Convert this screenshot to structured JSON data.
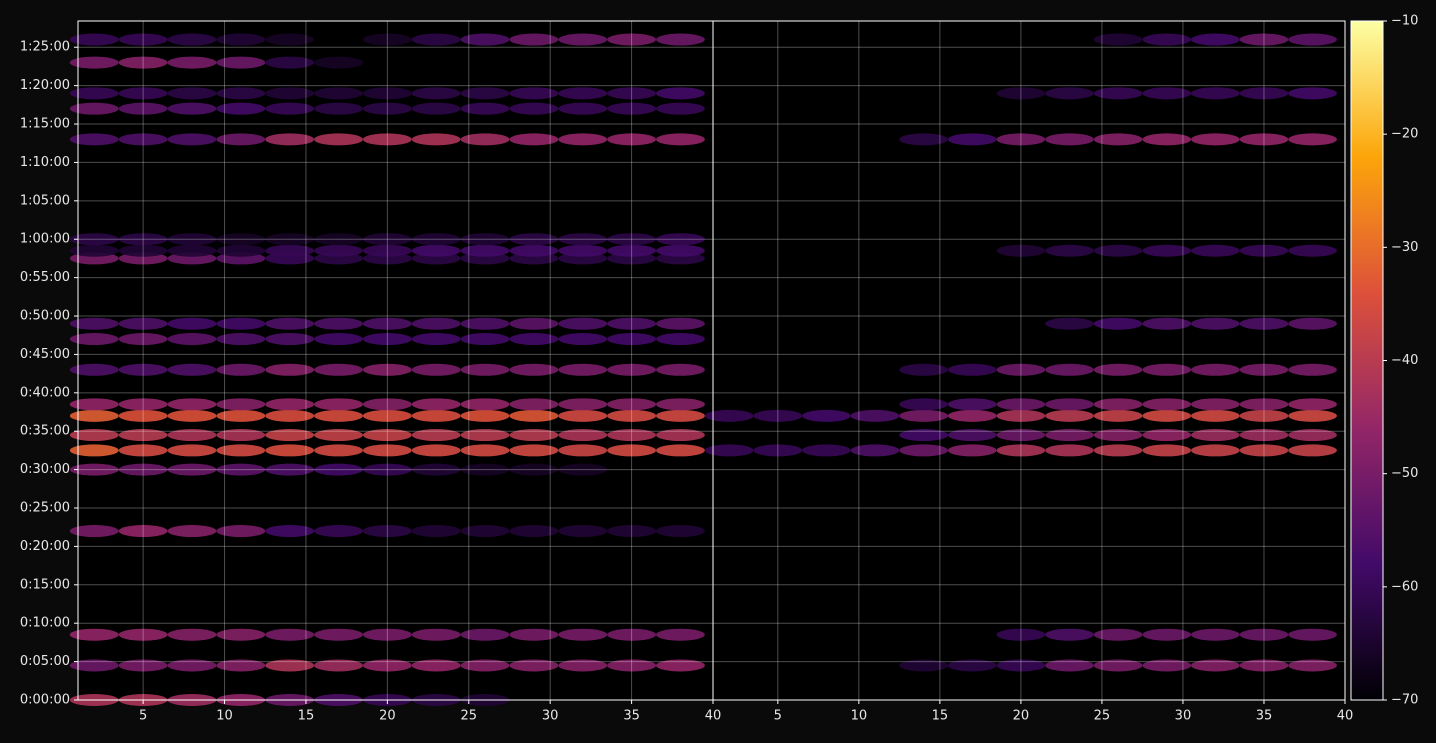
{
  "chart_data": [
    {
      "type": "heatmap",
      "grid": true,
      "x": [
        2,
        5,
        8,
        11,
        14,
        17,
        20,
        23,
        26,
        29,
        32,
        35,
        38
      ],
      "xlim": [
        1,
        40
      ],
      "xticks": [
        5,
        10,
        15,
        20,
        25,
        30,
        35,
        40
      ],
      "ylim": [
        0,
        5305
      ],
      "yticks": [
        {
          "value": 0,
          "label": "0:00:00"
        },
        {
          "value": 300,
          "label": "0:05:00"
        },
        {
          "value": 600,
          "label": "0:10:00"
        },
        {
          "value": 900,
          "label": "0:15:00"
        },
        {
          "value": 1200,
          "label": "0:20:00"
        },
        {
          "value": 1500,
          "label": "0:25:00"
        },
        {
          "value": 1800,
          "label": "0:30:00"
        },
        {
          "value": 2100,
          "label": "0:35:00"
        },
        {
          "value": 2400,
          "label": "0:40:00"
        },
        {
          "value": 2700,
          "label": "0:45:00"
        },
        {
          "value": 3000,
          "label": "0:50:00"
        },
        {
          "value": 3300,
          "label": "0:55:00"
        },
        {
          "value": 3600,
          "label": "1:00:00"
        },
        {
          "value": 3900,
          "label": "1:05:00"
        },
        {
          "value": 4200,
          "label": "1:10:00"
        },
        {
          "value": 4500,
          "label": "1:15:00"
        },
        {
          "value": 4800,
          "label": "1:20:00"
        },
        {
          "value": 5100,
          "label": "1:25:00"
        }
      ],
      "y": [
        0,
        270,
        510,
        1320,
        1800,
        1950,
        2070,
        2220,
        2310,
        2580,
        2820,
        2940,
        3450,
        3510,
        3600,
        4380,
        4620,
        4740,
        4980,
        5160
      ],
      "values": [
        [
          -42,
          -42,
          -44,
          -46,
          -52,
          -56,
          -60,
          -62,
          -64,
          null,
          null,
          null,
          null
        ],
        [
          -52,
          -50,
          -50,
          -48,
          -42,
          -44,
          -46,
          -46,
          -48,
          -48,
          -48,
          -48,
          -46
        ],
        [
          -46,
          -46,
          -48,
          -48,
          -50,
          -50,
          -50,
          -50,
          -52,
          -50,
          -50,
          -50,
          -50
        ],
        [
          -50,
          -46,
          -48,
          -50,
          -58,
          -60,
          -62,
          -64,
          -64,
          -64,
          -64,
          -64,
          -64
        ],
        [
          -50,
          -52,
          -52,
          -54,
          -56,
          -58,
          -60,
          -64,
          -66,
          -66,
          -66,
          null,
          null
        ],
        [
          -32,
          -36,
          -36,
          -36,
          -35,
          -36,
          -36,
          -36,
          -36,
          -36,
          -37,
          -36,
          -36
        ],
        [
          -40,
          -40,
          -42,
          -42,
          -38,
          -38,
          -38,
          -40,
          -40,
          -40,
          -42,
          -42,
          -42
        ],
        [
          -32,
          -34,
          -34,
          -34,
          -35,
          -35,
          -35,
          -35,
          -34,
          -33,
          -36,
          -36,
          -36
        ],
        [
          -46,
          -46,
          -46,
          -48,
          -46,
          -46,
          -48,
          -46,
          -46,
          -48,
          -48,
          -48,
          -48
        ],
        [
          -56,
          -56,
          -56,
          -52,
          -48,
          -50,
          -48,
          -50,
          -50,
          -50,
          -50,
          -50,
          -50
        ],
        [
          -52,
          -52,
          -54,
          -56,
          -56,
          -58,
          -58,
          -58,
          -58,
          -58,
          -58,
          -58,
          -58
        ],
        [
          -56,
          -56,
          -58,
          -58,
          -56,
          -56,
          -56,
          -56,
          -56,
          -54,
          -56,
          -56,
          -54
        ],
        [
          -50,
          -50,
          -52,
          -54,
          -60,
          -62,
          -62,
          -62,
          -62,
          -62,
          -62,
          -62,
          -62
        ],
        [
          -64,
          -64,
          -64,
          -64,
          -60,
          -60,
          -60,
          -58,
          -58,
          -58,
          -58,
          -58,
          -58
        ],
        [
          -62,
          -62,
          -64,
          -66,
          -66,
          -66,
          -64,
          -64,
          -64,
          -62,
          -62,
          -62,
          -60
        ],
        [
          -56,
          -56,
          -56,
          -52,
          -44,
          -42,
          -42,
          -42,
          -44,
          -46,
          -46,
          -46,
          -46
        ],
        [
          -52,
          -54,
          -56,
          -58,
          -60,
          -62,
          -62,
          -62,
          -60,
          -60,
          -60,
          -60,
          -60
        ],
        [
          -60,
          -60,
          -62,
          -62,
          -64,
          -64,
          -64,
          -62,
          -62,
          -60,
          -60,
          -60,
          -58
        ],
        [
          -50,
          -48,
          -50,
          -52,
          -62,
          -66,
          null,
          null,
          null,
          null,
          null,
          null,
          null
        ],
        [
          -60,
          -60,
          -62,
          -64,
          -66,
          null,
          -66,
          -62,
          -56,
          -52,
          -52,
          -50,
          -52
        ]
      ]
    },
    {
      "type": "heatmap",
      "grid": true,
      "x": [
        2,
        5,
        8,
        11,
        14,
        17,
        20,
        23,
        26,
        29,
        32,
        35,
        38
      ],
      "xlim": [
        1,
        40
      ],
      "xticks": [
        5,
        10,
        15,
        20,
        25,
        30,
        35,
        40
      ],
      "ylim": [
        0,
        5305
      ],
      "yticks": [
        0,
        300,
        600,
        900,
        1200,
        1500,
        1800,
        2100,
        2400,
        2700,
        3000,
        3300,
        3600,
        3900,
        4200,
        4500,
        4800,
        5100
      ],
      "y": [
        270,
        510,
        1950,
        2070,
        2220,
        2310,
        2580,
        2940,
        3510,
        4380,
        4740,
        5160
      ],
      "values": [
        [
          null,
          null,
          null,
          null,
          -64,
          -62,
          -60,
          -52,
          -50,
          -50,
          -48,
          -48,
          -48
        ],
        [
          null,
          null,
          null,
          null,
          null,
          null,
          -60,
          -56,
          -52,
          -52,
          -52,
          -52,
          -52
        ],
        [
          -60,
          -60,
          -60,
          -56,
          -52,
          -48,
          -42,
          -42,
          -40,
          -38,
          -38,
          -38,
          -38
        ],
        [
          null,
          null,
          null,
          null,
          -58,
          -56,
          -52,
          -50,
          -48,
          -46,
          -44,
          -44,
          -44
        ],
        [
          -60,
          -60,
          -58,
          -56,
          -50,
          -46,
          -42,
          -40,
          -38,
          -36,
          -36,
          -38,
          -36
        ],
        [
          null,
          null,
          null,
          null,
          -60,
          -56,
          -52,
          -52,
          -48,
          -48,
          -48,
          -48,
          -46
        ],
        [
          null,
          null,
          null,
          null,
          -62,
          -60,
          -52,
          -52,
          -50,
          -50,
          -50,
          -50,
          -50
        ],
        [
          null,
          null,
          null,
          null,
          null,
          null,
          null,
          -62,
          -58,
          -56,
          -56,
          -56,
          -54
        ],
        [
          null,
          null,
          null,
          null,
          null,
          null,
          -64,
          -62,
          -62,
          -60,
          -60,
          -60,
          -60
        ],
        [
          null,
          null,
          null,
          null,
          -62,
          -58,
          -50,
          -50,
          -48,
          -46,
          -46,
          -46,
          -46
        ],
        [
          null,
          null,
          null,
          null,
          null,
          null,
          -64,
          -62,
          -60,
          -60,
          -60,
          -60,
          -58
        ],
        [
          null,
          null,
          null,
          null,
          null,
          null,
          null,
          null,
          -64,
          -60,
          -58,
          -52,
          -54
        ]
      ]
    }
  ],
  "colorbar": {
    "colormap": "inferno",
    "lim": [
      -70,
      -10
    ],
    "ticks": [
      {
        "value": -70,
        "label": "−70"
      },
      {
        "value": -60,
        "label": "−60"
      },
      {
        "value": -50,
        "label": "−50"
      },
      {
        "value": -40,
        "label": "−40"
      },
      {
        "value": -30,
        "label": "−30"
      },
      {
        "value": -20,
        "label": "−20"
      },
      {
        "value": -10,
        "label": "−10"
      }
    ]
  }
}
